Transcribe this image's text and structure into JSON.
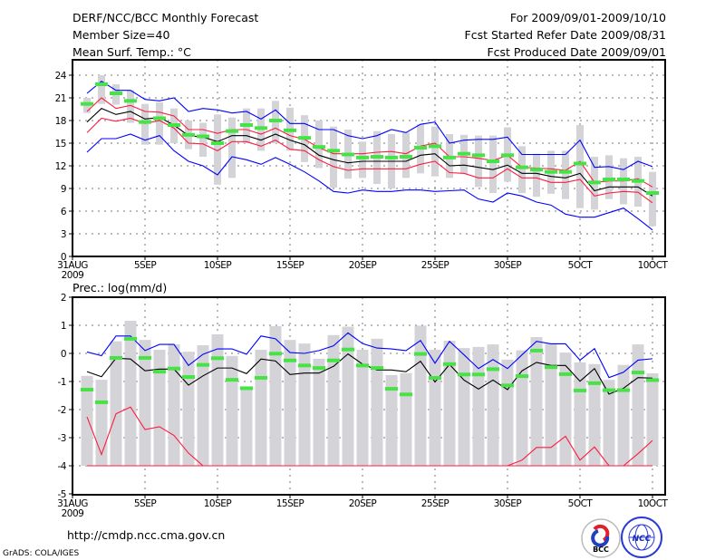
{
  "header": {
    "title": "DERF/NCC/BCC Monthly Forecast",
    "member_size": "Member Size=40",
    "variable": "Mean Surf. Temp.: °C",
    "period": "For 2009/09/01-2009/10/10",
    "started": "Fcst Started Refer Date 2009/08/31",
    "produced": "Fcst Produced Date 2009/09/01"
  },
  "footer": {
    "url": "http://cmdp.ncc.cma.gov.cn",
    "credit": "GrADS: COLA/IGES",
    "logo_bcc": "BCC",
    "logo_ncc": "NCC"
  },
  "colors": {
    "mean": "#000000",
    "spread": "#ff1a40",
    "envelope": "#0000ff",
    "observed": "#44e444",
    "ensemble": "#d4d4d8"
  },
  "chart_data": [
    {
      "type": "line",
      "title": "Mean Surf. Temp.: °C",
      "x_tick_labels": [
        "31AUG",
        "5SEP",
        "10SEP",
        "15SEP",
        "20SEP",
        "25SEP",
        "30SEP",
        "5OCT",
        "10OCT"
      ],
      "x_year_label": "2009",
      "x_days": [
        1,
        2,
        3,
        4,
        5,
        6,
        7,
        8,
        9,
        10,
        11,
        12,
        13,
        14,
        15,
        16,
        17,
        18,
        19,
        20,
        21,
        22,
        23,
        24,
        25,
        26,
        27,
        28,
        29,
        30,
        31,
        32,
        33,
        34,
        35,
        36,
        37,
        38,
        39,
        40
      ],
      "y_ticks": [
        0,
        3,
        6,
        9,
        12,
        15,
        18,
        21,
        24
      ],
      "ylim": [
        0,
        26
      ],
      "grid": true,
      "series": [
        {
          "name": "ensemble-range",
          "kind": "bar",
          "low": [
            19,
            20.2,
            20.1,
            17.7,
            14.8,
            14.8,
            15,
            14.2,
            13.2,
            9.5,
            10.4,
            15,
            14,
            15,
            14,
            12.5,
            11.7,
            9.1,
            10.3,
            10.4,
            9.6,
            9,
            10.4,
            11,
            10.6,
            10.4,
            10.9,
            9.2,
            8.4,
            9.9,
            8.4,
            7.9,
            8.3,
            7.6,
            6.4,
            6.2,
            7.6,
            6.9,
            6.6,
            4
          ],
          "high": [
            21,
            24,
            22.8,
            22,
            20.2,
            20.4,
            19.6,
            18,
            17.7,
            18.8,
            18.4,
            19.6,
            19.6,
            20.6,
            19.7,
            18.7,
            18,
            17.2,
            16.8,
            15.2,
            16.6,
            16.2,
            16.4,
            17.5,
            17.2,
            16.2,
            16.1,
            16,
            16,
            17.1,
            14.6,
            13.6,
            14,
            14,
            17.4,
            13.2,
            13.4,
            13,
            13.2,
            11.2
          ]
        },
        {
          "name": "envelope-upper",
          "color": "#0000ff",
          "values": [
            21.6,
            23.2,
            22,
            22,
            20.8,
            20.6,
            21,
            19.2,
            19.6,
            19.4,
            19,
            19.2,
            18.2,
            19.4,
            17.6,
            17.6,
            16.8,
            16.8,
            16,
            15.6,
            16,
            16.8,
            16.4,
            17.5,
            17.8,
            15,
            15.4,
            15.5,
            15.5,
            15.8,
            13.5,
            13.5,
            13.5,
            13.5,
            15.4,
            11.8,
            11.9,
            11.5,
            12.6,
            11.9
          ]
        },
        {
          "name": "spread-upper",
          "color": "#ff1a40",
          "values": [
            19.2,
            21,
            19.6,
            20,
            19.2,
            19.1,
            18.6,
            16.8,
            16.8,
            16.3,
            16.8,
            16.8,
            16.2,
            17,
            16,
            15.5,
            14.4,
            13.6,
            13.6,
            13.6,
            13.8,
            13.9,
            13.6,
            14.6,
            15,
            13.2,
            13.2,
            13,
            12.7,
            13.4,
            11.8,
            11.7,
            11.6,
            11.4,
            12.6,
            9.8,
            10,
            10,
            10.3,
            9.2
          ]
        },
        {
          "name": "ensemble-mean",
          "color": "#000000",
          "values": [
            17.8,
            19.6,
            18.8,
            19.2,
            18.2,
            18.4,
            17.4,
            16,
            15.8,
            15.2,
            16,
            16,
            15.4,
            16.2,
            15.4,
            14.8,
            13.4,
            12.8,
            12.4,
            12.6,
            12.6,
            12.6,
            12.6,
            13.4,
            13.6,
            12,
            12.1,
            11.8,
            11.5,
            12.1,
            11,
            11,
            10.6,
            10.4,
            11,
            8.7,
            9.2,
            9.2,
            9.2,
            8
          ]
        },
        {
          "name": "spread-lower",
          "color": "#ff1a40",
          "values": [
            16.4,
            18.3,
            17.9,
            18.3,
            17.6,
            18,
            17,
            15,
            14.9,
            14,
            15.2,
            15.2,
            14.6,
            15.4,
            14.2,
            14,
            12.8,
            11.9,
            11.4,
            11.6,
            11.6,
            11.6,
            11.6,
            12.2,
            12.6,
            11.1,
            11,
            10.4,
            10.4,
            11.6,
            10.4,
            10.4,
            9.8,
            9.8,
            10.2,
            8,
            8.4,
            8.6,
            8.5,
            7.1
          ]
        },
        {
          "name": "envelope-lower",
          "color": "#0000ff",
          "values": [
            13.8,
            15.6,
            15.6,
            16.2,
            15.4,
            16,
            14,
            12.6,
            12,
            10.8,
            13.2,
            12.8,
            12.2,
            13.1,
            12.2,
            11.2,
            10,
            8.6,
            8.4,
            8.8,
            8.6,
            8.6,
            8.8,
            8.8,
            8.6,
            8.7,
            8.8,
            7.6,
            7.2,
            8.4,
            8,
            7.2,
            6.8,
            5.6,
            5.2,
            5.2,
            5.8,
            6.4,
            5,
            3.5
          ]
        },
        {
          "name": "observed",
          "kind": "dash",
          "color": "#44e444",
          "values": [
            20.2,
            22.8,
            21.6,
            20.6,
            17.8,
            18.3,
            17.4,
            16.1,
            15.9,
            15,
            16.6,
            17.4,
            17,
            18,
            16.7,
            15.7,
            14.5,
            14,
            13.5,
            13.1,
            13.2,
            13.1,
            13.2,
            14.4,
            14.6,
            13.1,
            13.6,
            13.4,
            12.6,
            13.4,
            11.8,
            11.5,
            11.2,
            11.2,
            12.3,
            9.8,
            10.2,
            10.2,
            10,
            8.4
          ]
        }
      ]
    },
    {
      "type": "line",
      "title": "Prec.: log(mm/d)",
      "x_tick_labels": [
        "31AUG",
        "5SEP",
        "10SEP",
        "15SEP",
        "20SEP",
        "25SEP",
        "30SEP",
        "5OCT",
        "10OCT"
      ],
      "x_year_label": "2009",
      "x_days": [
        1,
        2,
        3,
        4,
        5,
        6,
        7,
        8,
        9,
        10,
        11,
        12,
        13,
        14,
        15,
        16,
        17,
        18,
        19,
        20,
        21,
        22,
        23,
        24,
        25,
        26,
        27,
        28,
        29,
        30,
        31,
        32,
        33,
        34,
        35,
        36,
        37,
        38,
        39,
        40
      ],
      "y_ticks": [
        -5,
        -4,
        -3,
        -2,
        -1,
        0,
        1,
        2
      ],
      "ylim": [
        -5,
        2
      ],
      "grid": true,
      "series": [
        {
          "name": "ensemble-range",
          "kind": "bar",
          "low": [
            -4,
            -4,
            -4,
            -4,
            -4,
            -4,
            -4,
            -4,
            -4,
            -4,
            -4,
            -4,
            -4,
            -4,
            -4,
            -4,
            -4,
            -4,
            -4,
            -4,
            -4,
            -4,
            -4,
            -4,
            -4,
            -4,
            -4,
            -4,
            -4,
            -4,
            -4,
            -4,
            -4,
            -4,
            -4,
            -4,
            -4,
            -4,
            -4,
            -4
          ],
          "high": [
            -0.8,
            -0.94,
            0.43,
            1.16,
            0.48,
            0.13,
            0.32,
            0.06,
            0.29,
            0.68,
            -0.09,
            -1.2,
            0.13,
            0.97,
            0.48,
            0.35,
            -0.19,
            0.65,
            0.95,
            0.13,
            0.52,
            -0.77,
            -0.7,
            0.99,
            0.13,
            0.45,
            0.19,
            0.23,
            0.32,
            -0.22,
            0.11,
            0.58,
            0.34,
            0.03,
            -0.32,
            -0.38,
            -0.94,
            -0.41,
            0.32,
            -0.71
          ]
        },
        {
          "name": "envelope-upper",
          "color": "#0000ff",
          "values": [
            0.05,
            -0.08,
            0.62,
            0.62,
            0.1,
            0.32,
            0.32,
            -0.43,
            -0.03,
            0.16,
            0.16,
            -0.03,
            0.62,
            0.52,
            0.03,
            0,
            0.1,
            0.27,
            0.73,
            0.35,
            0.19,
            0.16,
            0.1,
            0.46,
            -0.35,
            0.43,
            -0.05,
            -0.54,
            -0.22,
            -0.54,
            -0.05,
            0.43,
            0.34,
            0.34,
            -0.24,
            0.17,
            -0.86,
            -0.67,
            -0.24,
            -0.19
          ]
        },
        {
          "name": "ensemble-mean",
          "color": "#000000",
          "values": [
            -0.65,
            -0.83,
            -0.17,
            -0.2,
            -0.62,
            -0.56,
            -0.56,
            -1.13,
            -0.8,
            -0.52,
            -0.52,
            -0.72,
            -0.2,
            -0.27,
            -0.75,
            -0.7,
            -0.7,
            -0.46,
            -0.02,
            -0.38,
            -0.59,
            -0.59,
            -0.65,
            -0.28,
            -1.02,
            -0.39,
            -0.95,
            -1.27,
            -0.95,
            -1.29,
            -0.62,
            -0.32,
            -0.43,
            -0.43,
            -0.99,
            -0.54,
            -1.45,
            -1.24,
            -0.86,
            -0.88
          ]
        },
        {
          "name": "spread-upper",
          "color": "#ff1a40",
          "values": [
            -2.26,
            -3.6,
            -2.15,
            -1.91,
            -2.71,
            -2.61,
            -2.92,
            -3.55,
            -4,
            -4,
            -4,
            -4,
            -4,
            -4,
            -4,
            -4,
            -4,
            -4,
            -4,
            -4,
            -4,
            -4,
            -4,
            -4,
            -4,
            -4,
            -4,
            -4,
            -4,
            -4,
            -3.8,
            -3.35,
            -3.35,
            -2.95,
            -3.8,
            -3.33,
            -4,
            -4,
            -3.57,
            -3.1
          ]
        },
        {
          "name": "spread-lower",
          "color": "#ff1a40",
          "values": [
            -4,
            -4,
            -4,
            -4,
            -4,
            -4,
            -4,
            -4,
            -4,
            -4,
            -4,
            -4,
            -4,
            -4,
            -4,
            -4,
            -4,
            -4,
            -4,
            -4,
            -4,
            -4,
            -4,
            -4,
            -4,
            -4,
            -4,
            -4,
            -4,
            -4,
            -4,
            -4,
            -4,
            -4,
            -4,
            -4,
            -4,
            -4,
            -4,
            -4
          ]
        },
        {
          "name": "observed",
          "kind": "dash",
          "color": "#44e444",
          "values": [
            -1.29,
            -1.74,
            -0.16,
            0.52,
            -0.16,
            -0.65,
            -0.54,
            -0.84,
            -0.41,
            -0.17,
            -0.94,
            -1.24,
            -0.87,
            -0.01,
            -0.25,
            -0.43,
            -0.52,
            -0.25,
            0.14,
            -0.43,
            -0.52,
            -1.26,
            -1.46,
            -0.02,
            -0.87,
            -0.38,
            -0.75,
            -0.75,
            -0.56,
            -1.14,
            -0.81,
            0.1,
            -0.49,
            -0.74,
            -1.32,
            -1.06,
            -1.31,
            -1.31,
            -0.68,
            -0.95
          ]
        }
      ]
    }
  ]
}
